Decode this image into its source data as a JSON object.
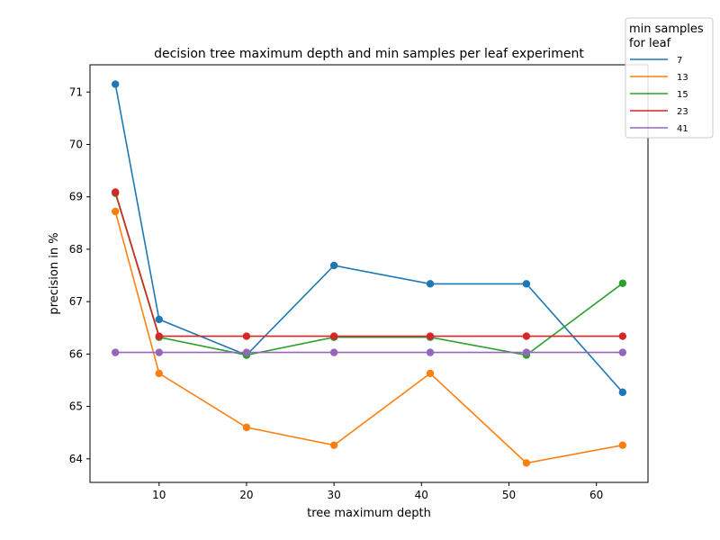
{
  "chart_data": {
    "type": "line",
    "title": "decision tree maximum depth and min samples per leaf experiment",
    "xlabel": "tree maximum depth",
    "ylabel": "precision in %",
    "x": [
      5,
      10,
      20,
      30,
      41,
      52,
      63
    ],
    "xlim": [
      2.1,
      65.9
    ],
    "ylim": [
      63.55,
      71.52
    ],
    "xticks": [
      10,
      20,
      30,
      40,
      50,
      60
    ],
    "yticks": [
      64,
      65,
      66,
      67,
      68,
      69,
      70,
      71
    ],
    "grid": false,
    "legend": {
      "title_lines": [
        "min samples",
        "for leaf"
      ],
      "placement": "top-right, outside plot"
    },
    "markers": "circle",
    "series": [
      {
        "name": "7",
        "color": "#1f77b4",
        "values": [
          71.15,
          66.66,
          65.98,
          67.69,
          67.34,
          67.34,
          65.27
        ]
      },
      {
        "name": "13",
        "color": "#ff7f0e",
        "values": [
          68.72,
          65.63,
          64.6,
          64.26,
          65.63,
          63.92,
          64.26
        ]
      },
      {
        "name": "15",
        "color": "#2ca02c",
        "values": [
          69.07,
          66.32,
          65.98,
          66.32,
          66.32,
          65.98,
          67.35
        ]
      },
      {
        "name": "23",
        "color": "#d62728",
        "values": [
          69.09,
          66.34,
          66.34,
          66.34,
          66.34,
          66.34,
          66.34
        ]
      },
      {
        "name": "41",
        "color": "#9467bd",
        "values": [
          66.03,
          66.03,
          66.03,
          66.03,
          66.03,
          66.03,
          66.03
        ]
      }
    ]
  }
}
